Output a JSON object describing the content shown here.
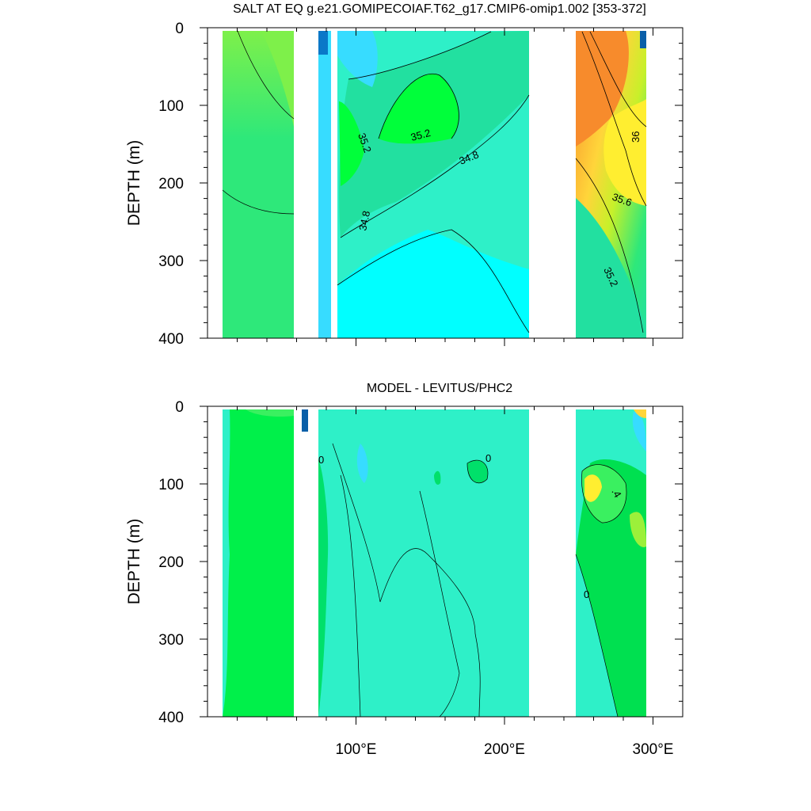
{
  "chart_data": [
    {
      "type": "heatmap",
      "title": "SALT AT EQ g.e21.GOMIPECOIAF.T62_g17.CMIP6-omip1.002 [353-372]",
      "xlabel": "",
      "ylabel": "DEPTH (m)",
      "xlim": [
        0,
        320
      ],
      "ylim": [
        400,
        0
      ],
      "xticks": [
        100,
        200,
        300
      ],
      "xtick_labels": [
        "",
        "",
        ""
      ],
      "yticks": [
        0,
        100,
        200,
        300,
        400
      ],
      "ytick_labels": [
        "0",
        "100",
        "200",
        "300",
        "400"
      ],
      "contour_labels": [
        {
          "text": "35.2",
          "x": 104,
          "y": 155
        },
        {
          "text": "35.2",
          "x": 150,
          "y": 148
        },
        {
          "text": "34.8",
          "x": 182,
          "y": 183
        },
        {
          "text": "34.8",
          "x": 108,
          "y": 265
        },
        {
          "text": "36",
          "x": 297,
          "y": 140
        },
        {
          "text": "35.6",
          "x": 285,
          "y": 225
        },
        {
          "text": "35.2",
          "x": 278,
          "y": 320
        }
      ],
      "colors": {
        "salt_low": "#0a5fa8",
        "salt_fresh": "#37dcff",
        "salt_mid": "#2ef0c8",
        "salt_high": "#ff9a3a"
      },
      "grid": false
    },
    {
      "type": "heatmap",
      "title": "MODEL - LEVITUS/PHC2",
      "xlabel": "",
      "ylabel": "DEPTH (m)",
      "xlim": [
        0,
        320
      ],
      "ylim": [
        400,
        0
      ],
      "xticks": [
        100,
        200,
        300
      ],
      "xtick_labels": [
        "100°E",
        "200°E",
        "300°E"
      ],
      "yticks": [
        0,
        100,
        200,
        300,
        400
      ],
      "ytick_labels": [
        "0",
        "100",
        "200",
        "300",
        "400"
      ],
      "contour_labels": [
        {
          "text": "0",
          "x": 82,
          "y": 67
        },
        {
          "text": "0",
          "x": 195,
          "y": 67
        },
        {
          "text": ".4",
          "x": 283,
          "y": 105
        },
        {
          "text": "0",
          "x": 261,
          "y": 240
        }
      ],
      "grid": false
    }
  ]
}
